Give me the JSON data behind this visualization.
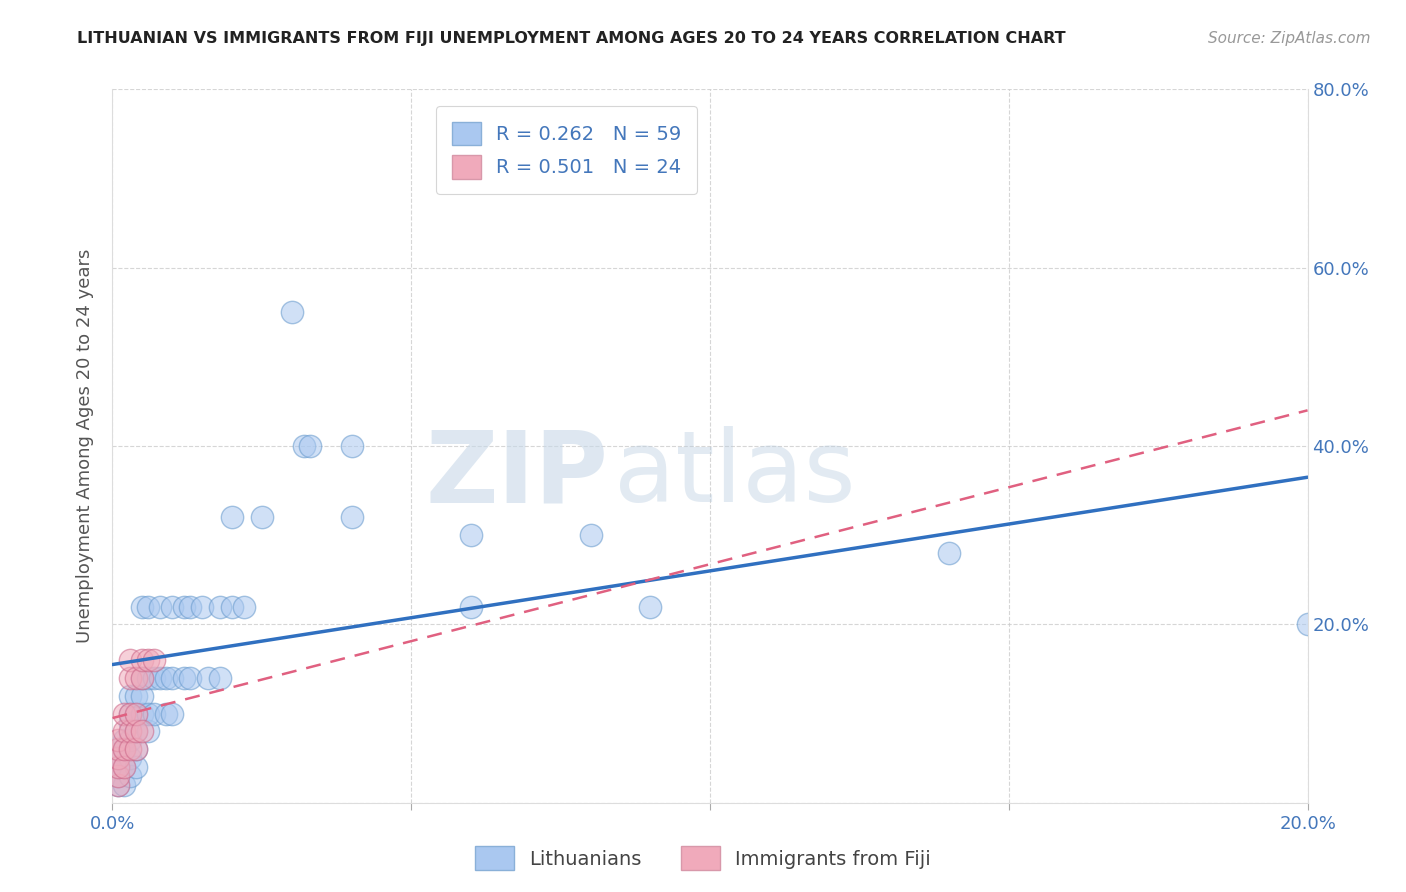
{
  "title": "LITHUANIAN VS IMMIGRANTS FROM FIJI UNEMPLOYMENT AMONG AGES 20 TO 24 YEARS CORRELATION CHART",
  "source": "Source: ZipAtlas.com",
  "ylabel": "Unemployment Among Ages 20 to 24 years",
  "xlim": [
    0,
    0.2
  ],
  "ylim": [
    0,
    0.8
  ],
  "xticks": [
    0.0,
    0.05,
    0.1,
    0.15,
    0.2
  ],
  "yticks": [
    0.0,
    0.2,
    0.4,
    0.6,
    0.8
  ],
  "xtick_labels": [
    "0.0%",
    "",
    "",
    "",
    "20.0%"
  ],
  "right_ytick_labels": [
    "",
    "20.0%",
    "40.0%",
    "60.0%",
    "80.0%"
  ],
  "watermark_zip": "ZIP",
  "watermark_atlas": "atlas",
  "legend_labels": [
    "Lithuanians",
    "Immigrants from Fiji"
  ],
  "r_blue": 0.262,
  "n_blue": 59,
  "r_pink": 0.501,
  "n_pink": 24,
  "blue_color": "#aac8f0",
  "pink_color": "#f0aabb",
  "blue_line_color": "#3070c0",
  "pink_line_color": "#e06080",
  "blue_scatter": [
    [
      0.001,
      0.02
    ],
    [
      0.001,
      0.03
    ],
    [
      0.001,
      0.04
    ],
    [
      0.001,
      0.05
    ],
    [
      0.002,
      0.02
    ],
    [
      0.002,
      0.04
    ],
    [
      0.002,
      0.06
    ],
    [
      0.002,
      0.07
    ],
    [
      0.003,
      0.03
    ],
    [
      0.003,
      0.05
    ],
    [
      0.003,
      0.07
    ],
    [
      0.003,
      0.09
    ],
    [
      0.003,
      0.1
    ],
    [
      0.003,
      0.12
    ],
    [
      0.004,
      0.04
    ],
    [
      0.004,
      0.06
    ],
    [
      0.004,
      0.08
    ],
    [
      0.004,
      0.1
    ],
    [
      0.004,
      0.12
    ],
    [
      0.005,
      0.22
    ],
    [
      0.005,
      0.1
    ],
    [
      0.005,
      0.12
    ],
    [
      0.005,
      0.14
    ],
    [
      0.006,
      0.08
    ],
    [
      0.006,
      0.1
    ],
    [
      0.006,
      0.14
    ],
    [
      0.006,
      0.22
    ],
    [
      0.007,
      0.1
    ],
    [
      0.007,
      0.14
    ],
    [
      0.008,
      0.22
    ],
    [
      0.008,
      0.14
    ],
    [
      0.009,
      0.1
    ],
    [
      0.009,
      0.14
    ],
    [
      0.01,
      0.22
    ],
    [
      0.01,
      0.14
    ],
    [
      0.01,
      0.1
    ],
    [
      0.012,
      0.14
    ],
    [
      0.012,
      0.22
    ],
    [
      0.013,
      0.14
    ],
    [
      0.013,
      0.22
    ],
    [
      0.015,
      0.22
    ],
    [
      0.016,
      0.14
    ],
    [
      0.018,
      0.14
    ],
    [
      0.018,
      0.22
    ],
    [
      0.02,
      0.22
    ],
    [
      0.02,
      0.32
    ],
    [
      0.022,
      0.22
    ],
    [
      0.025,
      0.32
    ],
    [
      0.03,
      0.55
    ],
    [
      0.032,
      0.4
    ],
    [
      0.033,
      0.4
    ],
    [
      0.04,
      0.4
    ],
    [
      0.04,
      0.32
    ],
    [
      0.06,
      0.3
    ],
    [
      0.06,
      0.22
    ],
    [
      0.08,
      0.3
    ],
    [
      0.09,
      0.22
    ],
    [
      0.14,
      0.28
    ],
    [
      0.2,
      0.2
    ]
  ],
  "pink_scatter": [
    [
      0.001,
      0.02
    ],
    [
      0.001,
      0.03
    ],
    [
      0.001,
      0.04
    ],
    [
      0.001,
      0.05
    ],
    [
      0.001,
      0.06
    ],
    [
      0.001,
      0.07
    ],
    [
      0.002,
      0.04
    ],
    [
      0.002,
      0.06
    ],
    [
      0.002,
      0.08
    ],
    [
      0.002,
      0.1
    ],
    [
      0.003,
      0.06
    ],
    [
      0.003,
      0.08
    ],
    [
      0.003,
      0.1
    ],
    [
      0.003,
      0.14
    ],
    [
      0.003,
      0.16
    ],
    [
      0.004,
      0.06
    ],
    [
      0.004,
      0.08
    ],
    [
      0.004,
      0.1
    ],
    [
      0.004,
      0.14
    ],
    [
      0.005,
      0.08
    ],
    [
      0.005,
      0.14
    ],
    [
      0.005,
      0.16
    ],
    [
      0.006,
      0.16
    ],
    [
      0.007,
      0.16
    ]
  ],
  "blue_trendline": [
    [
      0.0,
      0.155
    ],
    [
      0.2,
      0.365
    ]
  ],
  "pink_trendline": [
    [
      0.0,
      0.095
    ],
    [
      0.2,
      0.44
    ]
  ]
}
